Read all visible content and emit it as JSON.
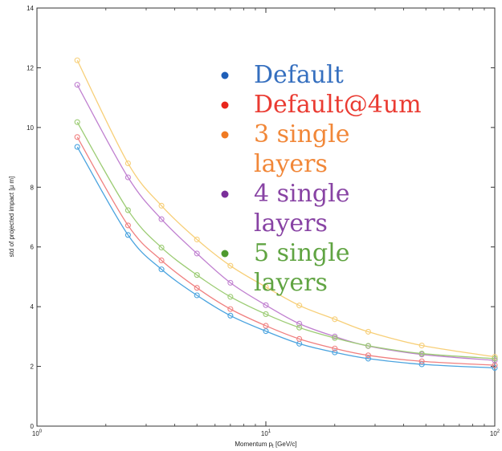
{
  "chart_data": {
    "type": "line",
    "title": "",
    "xlabel": "Momentum p_t [GeV/c]",
    "xlabel_main": "Momentum p",
    "xlabel_sub": "t",
    "xlabel_tail": " [GeV/c]",
    "ylabel": "std of projected impact [μ m]",
    "xscale": "log",
    "xlim": [
      1,
      100
    ],
    "ylim": [
      0,
      14
    ],
    "grid": false,
    "yticks": [
      0,
      2,
      4,
      6,
      8,
      10,
      12,
      14
    ],
    "xticks": [
      {
        "base": "10",
        "exp": "0",
        "value": 1
      },
      {
        "base": "10",
        "exp": "1",
        "value": 10
      },
      {
        "base": "10",
        "exp": "2",
        "value": 100
      }
    ],
    "x": [
      1.5,
      2.5,
      3.5,
      5,
      7,
      10,
      14,
      20,
      28,
      48,
      100
    ],
    "legend_position": "upper-center",
    "series": [
      {
        "name": "Default",
        "color": "#4aa3df",
        "marker": "#1f5fb8",
        "values": [
          9.35,
          6.4,
          5.25,
          4.38,
          3.7,
          3.18,
          2.76,
          2.47,
          2.26,
          2.07,
          1.95
        ]
      },
      {
        "name": "Default@4um",
        "color": "#f08080",
        "marker": "#e8261c",
        "values": [
          9.68,
          6.72,
          5.55,
          4.63,
          3.92,
          3.36,
          2.92,
          2.6,
          2.37,
          2.17,
          2.04
        ]
      },
      {
        "name": "3 single layers",
        "color": "#f7cf78",
        "marker": "#f07a22",
        "values": [
          12.25,
          8.8,
          7.38,
          6.25,
          5.37,
          4.66,
          4.04,
          3.58,
          3.16,
          2.7,
          2.32
        ]
      },
      {
        "name": "4 single layers",
        "color": "#c080d0",
        "marker": "#7b2f9a",
        "values": [
          11.43,
          8.33,
          6.93,
          5.78,
          4.8,
          4.05,
          3.43,
          3.0,
          2.68,
          2.4,
          2.2
        ]
      },
      {
        "name": "5 single layers",
        "color": "#9ccc74",
        "marker": "#4f9a2e",
        "values": [
          10.18,
          7.23,
          5.98,
          5.06,
          4.33,
          3.75,
          3.3,
          2.95,
          2.69,
          2.43,
          2.26
        ]
      }
    ]
  }
}
